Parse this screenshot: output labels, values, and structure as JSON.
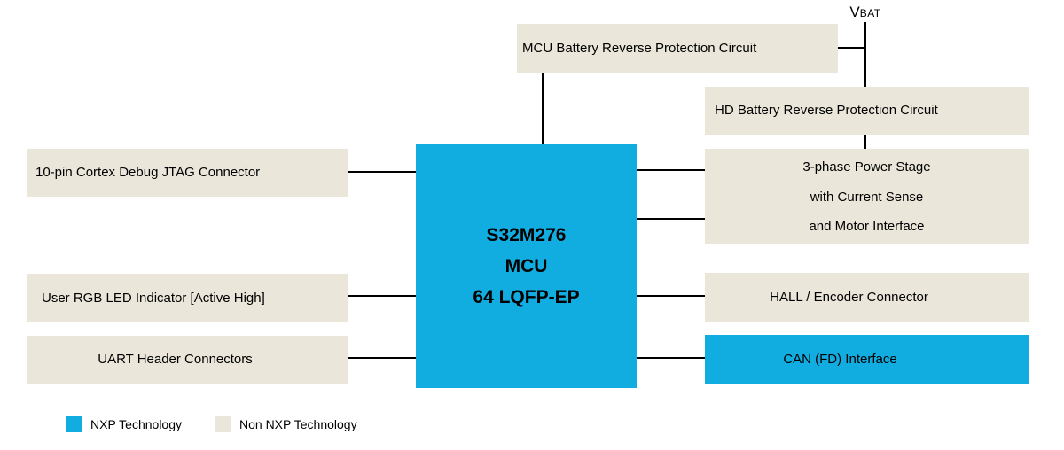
{
  "diagram": {
    "mcu": {
      "line1": "S32M276",
      "line2": "MCU",
      "line3": "64 LQFP-EP"
    },
    "vbat": {
      "v": "V",
      "bat": "BAT"
    },
    "top_boxes": {
      "mcu_battery": "MCU Battery Reverse Protection Circuit",
      "hd_battery": "HD Battery Reverse Protection Circuit"
    },
    "left_boxes": {
      "jtag": "10-pin Cortex Debug JTAG Connector",
      "rgb_led": "User RGB LED Indicator [Active High]",
      "uart": "UART Header Connectors"
    },
    "right_boxes": {
      "power_stage": {
        "line1": "3-phase Power Stage",
        "line2": "with Current Sense",
        "line3": "and Motor Interface"
      },
      "hall": "HALL / Encoder Connector",
      "can": "CAN (FD) Interface"
    },
    "legend": {
      "nxp": "NXP Technology",
      "non_nxp": "Non NXP Technology"
    },
    "colors": {
      "nxp_blue": "#12ADE0",
      "non_nxp_beige": "#EAE6DA",
      "line_black": "#000000"
    }
  }
}
